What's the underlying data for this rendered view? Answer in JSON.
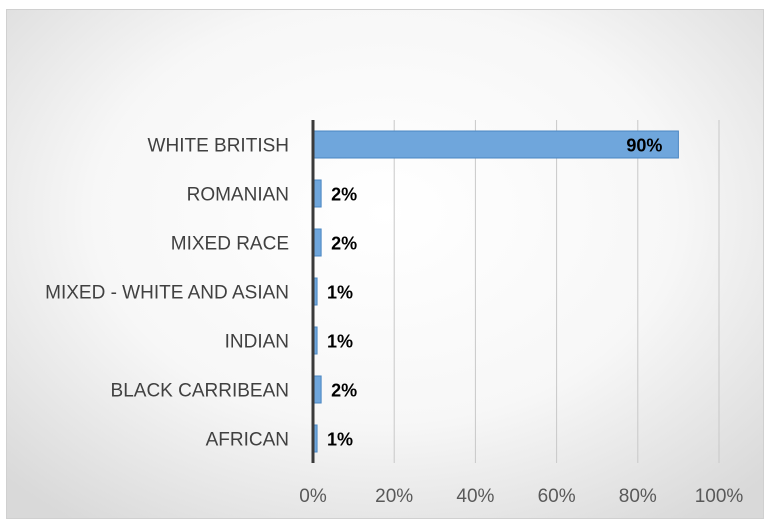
{
  "chart_data": {
    "type": "bar",
    "orientation": "horizontal",
    "title": "",
    "xlabel": "",
    "ylabel": "",
    "categories": [
      "WHITE BRITISH",
      "ROMANIAN",
      "MIXED RACE",
      "MIXED - WHITE AND ASIAN",
      "INDIAN",
      "BLACK CARRIBEAN",
      "AFRICAN"
    ],
    "values": [
      0.9,
      0.02,
      0.02,
      0.01,
      0.01,
      0.02,
      0.01
    ],
    "data_labels": [
      "90%",
      "2%",
      "2%",
      "1%",
      "1%",
      "2%",
      "1%"
    ],
    "xlim": [
      0,
      1.0
    ],
    "x_ticks": [
      "0%",
      "20%",
      "40%",
      "60%",
      "80%",
      "100%"
    ],
    "grid": "vertical",
    "bar_color": "#6fa6dc",
    "bar_edge_color": "#4a86c2",
    "legend": "none"
  }
}
